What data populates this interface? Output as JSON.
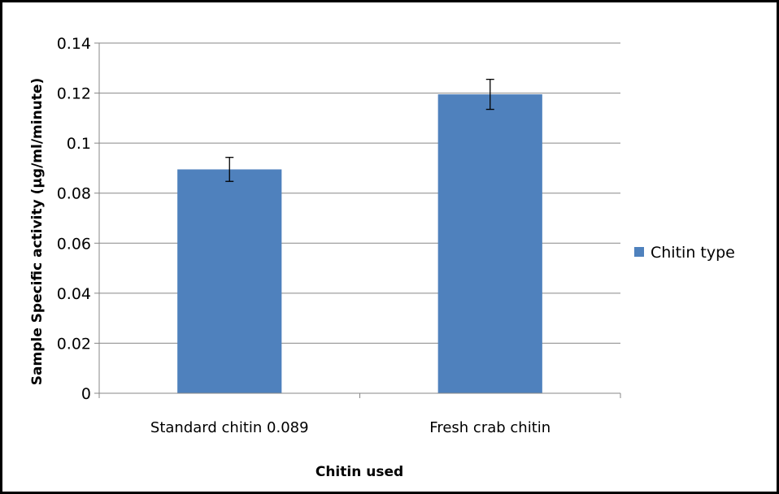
{
  "chart_data": {
    "type": "bar",
    "categories": [
      "Standard chitin 0.089",
      "Fresh crab chitin"
    ],
    "series": [
      {
        "name": "Chitin type",
        "values": [
          0.0895,
          0.1195
        ],
        "error": [
          0.0048,
          0.006
        ]
      }
    ],
    "title": "",
    "xlabel": "Chitin used",
    "ylabel": "Sample Specific activity (µg/ml/minute)",
    "ylim": [
      0,
      0.14
    ],
    "yticks": [
      0,
      0.02,
      0.04,
      0.06,
      0.08,
      0.1,
      0.12,
      0.14
    ],
    "ytick_labels": [
      "0",
      "0.02",
      "0.04",
      "0.06",
      "0.08",
      "0.1",
      "0.12",
      "0.14"
    ],
    "grid": "horizontal",
    "legend": "right",
    "colors": {
      "bar": "#4f81bd",
      "grid": "#878787",
      "border": "#000000"
    }
  }
}
